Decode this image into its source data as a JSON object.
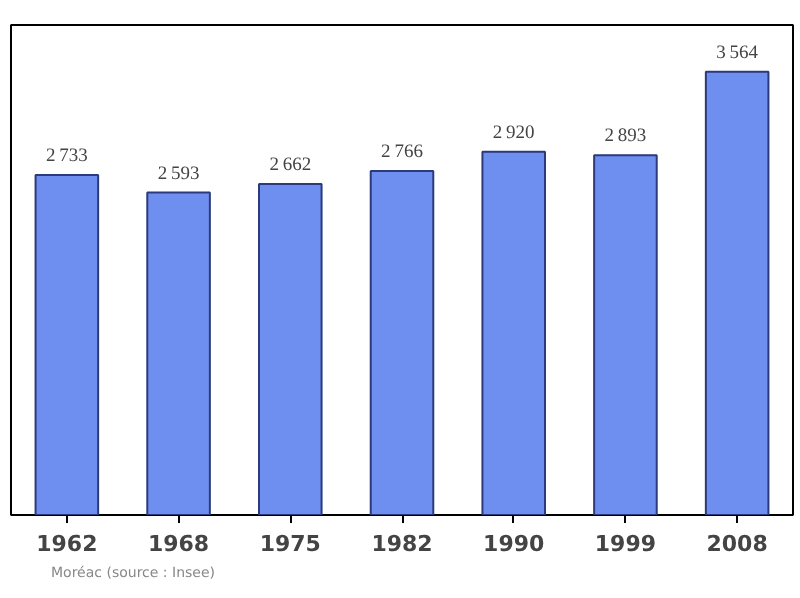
{
  "chart_data": {
    "type": "bar",
    "categories": [
      "1962",
      "1968",
      "1975",
      "1982",
      "1990",
      "1999",
      "2008"
    ],
    "values": [
      2733,
      2593,
      2662,
      2766,
      2920,
      2893,
      3564
    ],
    "color": "#6f8ff0",
    "ylim": [
      0,
      3940
    ],
    "tick_labels": "x",
    "grid": false,
    "data_labels": true,
    "annotations": [
      "Moréac    (source : Insee)"
    ]
  }
}
